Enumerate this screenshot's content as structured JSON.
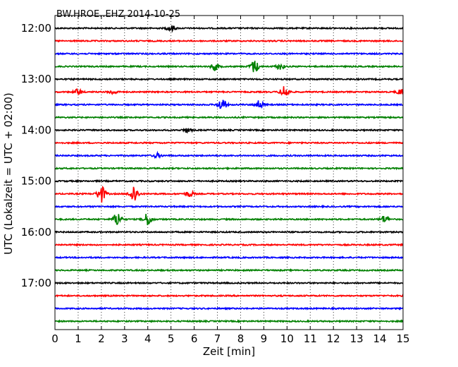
{
  "chart_data": {
    "type": "line",
    "title": "BW.HROE..EHZ 2014-10-25",
    "xlabel": "Zeit  [min]",
    "ylabel": "UTC (Lokalzeit = UTC + 02:00)",
    "xlim": [
      0,
      15
    ],
    "x_ticks": [
      "0",
      "1",
      "2",
      "3",
      "4",
      "5",
      "6",
      "7",
      "8",
      "9",
      "10",
      "11",
      "12",
      "13",
      "14",
      "15"
    ],
    "y_ticks": [
      "12:00",
      "13:00",
      "14:00",
      "15:00",
      "16:00",
      "17:00"
    ],
    "grid": "vertical dotted",
    "trace_colors": [
      "#000000",
      "#ff0000",
      "#0000ff",
      "#008000"
    ],
    "series": [
      {
        "offset": "12:00",
        "color": "#000000",
        "events": [
          {
            "t": 5.0,
            "amp": 4
          }
        ]
      },
      {
        "offset": "12:15",
        "color": "#ff0000",
        "events": []
      },
      {
        "offset": "12:30",
        "color": "#0000ff",
        "events": []
      },
      {
        "offset": "12:45",
        "color": "#008000",
        "events": [
          {
            "t": 6.9,
            "amp": 5
          },
          {
            "t": 8.6,
            "amp": 9
          },
          {
            "t": 9.7,
            "amp": 4
          }
        ]
      },
      {
        "offset": "13:00",
        "color": "#000000",
        "events": []
      },
      {
        "offset": "13:15",
        "color": "#ff0000",
        "events": [
          {
            "t": 1.0,
            "amp": 4
          },
          {
            "t": 2.5,
            "amp": 3
          },
          {
            "t": 9.9,
            "amp": 9
          },
          {
            "t": 14.9,
            "amp": 4
          }
        ]
      },
      {
        "offset": "13:30",
        "color": "#0000ff",
        "events": [
          {
            "t": 7.2,
            "amp": 8
          },
          {
            "t": 8.8,
            "amp": 6
          }
        ]
      },
      {
        "offset": "13:45",
        "color": "#008000",
        "events": []
      },
      {
        "offset": "14:00",
        "color": "#000000",
        "events": [
          {
            "t": 5.7,
            "amp": 3
          }
        ]
      },
      {
        "offset": "14:15",
        "color": "#ff0000",
        "events": []
      },
      {
        "offset": "14:30",
        "color": "#0000ff",
        "events": [
          {
            "t": 4.4,
            "amp": 3
          }
        ]
      },
      {
        "offset": "14:45",
        "color": "#008000",
        "events": []
      },
      {
        "offset": "15:00",
        "color": "#000000",
        "events": []
      },
      {
        "offset": "15:15",
        "color": "#ff0000",
        "events": [
          {
            "t": 2.0,
            "amp": 12
          },
          {
            "t": 3.4,
            "amp": 13
          },
          {
            "t": 5.8,
            "amp": 4
          }
        ]
      },
      {
        "offset": "15:30",
        "color": "#0000ff",
        "events": []
      },
      {
        "offset": "15:45",
        "color": "#008000",
        "events": [
          {
            "t": 2.7,
            "amp": 10
          },
          {
            "t": 4.0,
            "amp": 9
          },
          {
            "t": 14.2,
            "amp": 5
          }
        ]
      },
      {
        "offset": "16:00",
        "color": "#000000",
        "events": []
      },
      {
        "offset": "16:15",
        "color": "#ff0000",
        "events": []
      },
      {
        "offset": "16:30",
        "color": "#0000ff",
        "events": []
      },
      {
        "offset": "16:45",
        "color": "#008000",
        "events": []
      },
      {
        "offset": "17:00",
        "color": "#000000",
        "events": []
      },
      {
        "offset": "17:15",
        "color": "#ff0000",
        "events": []
      },
      {
        "offset": "17:30",
        "color": "#0000ff",
        "events": []
      },
      {
        "offset": "17:45",
        "color": "#008000",
        "events": []
      }
    ]
  }
}
